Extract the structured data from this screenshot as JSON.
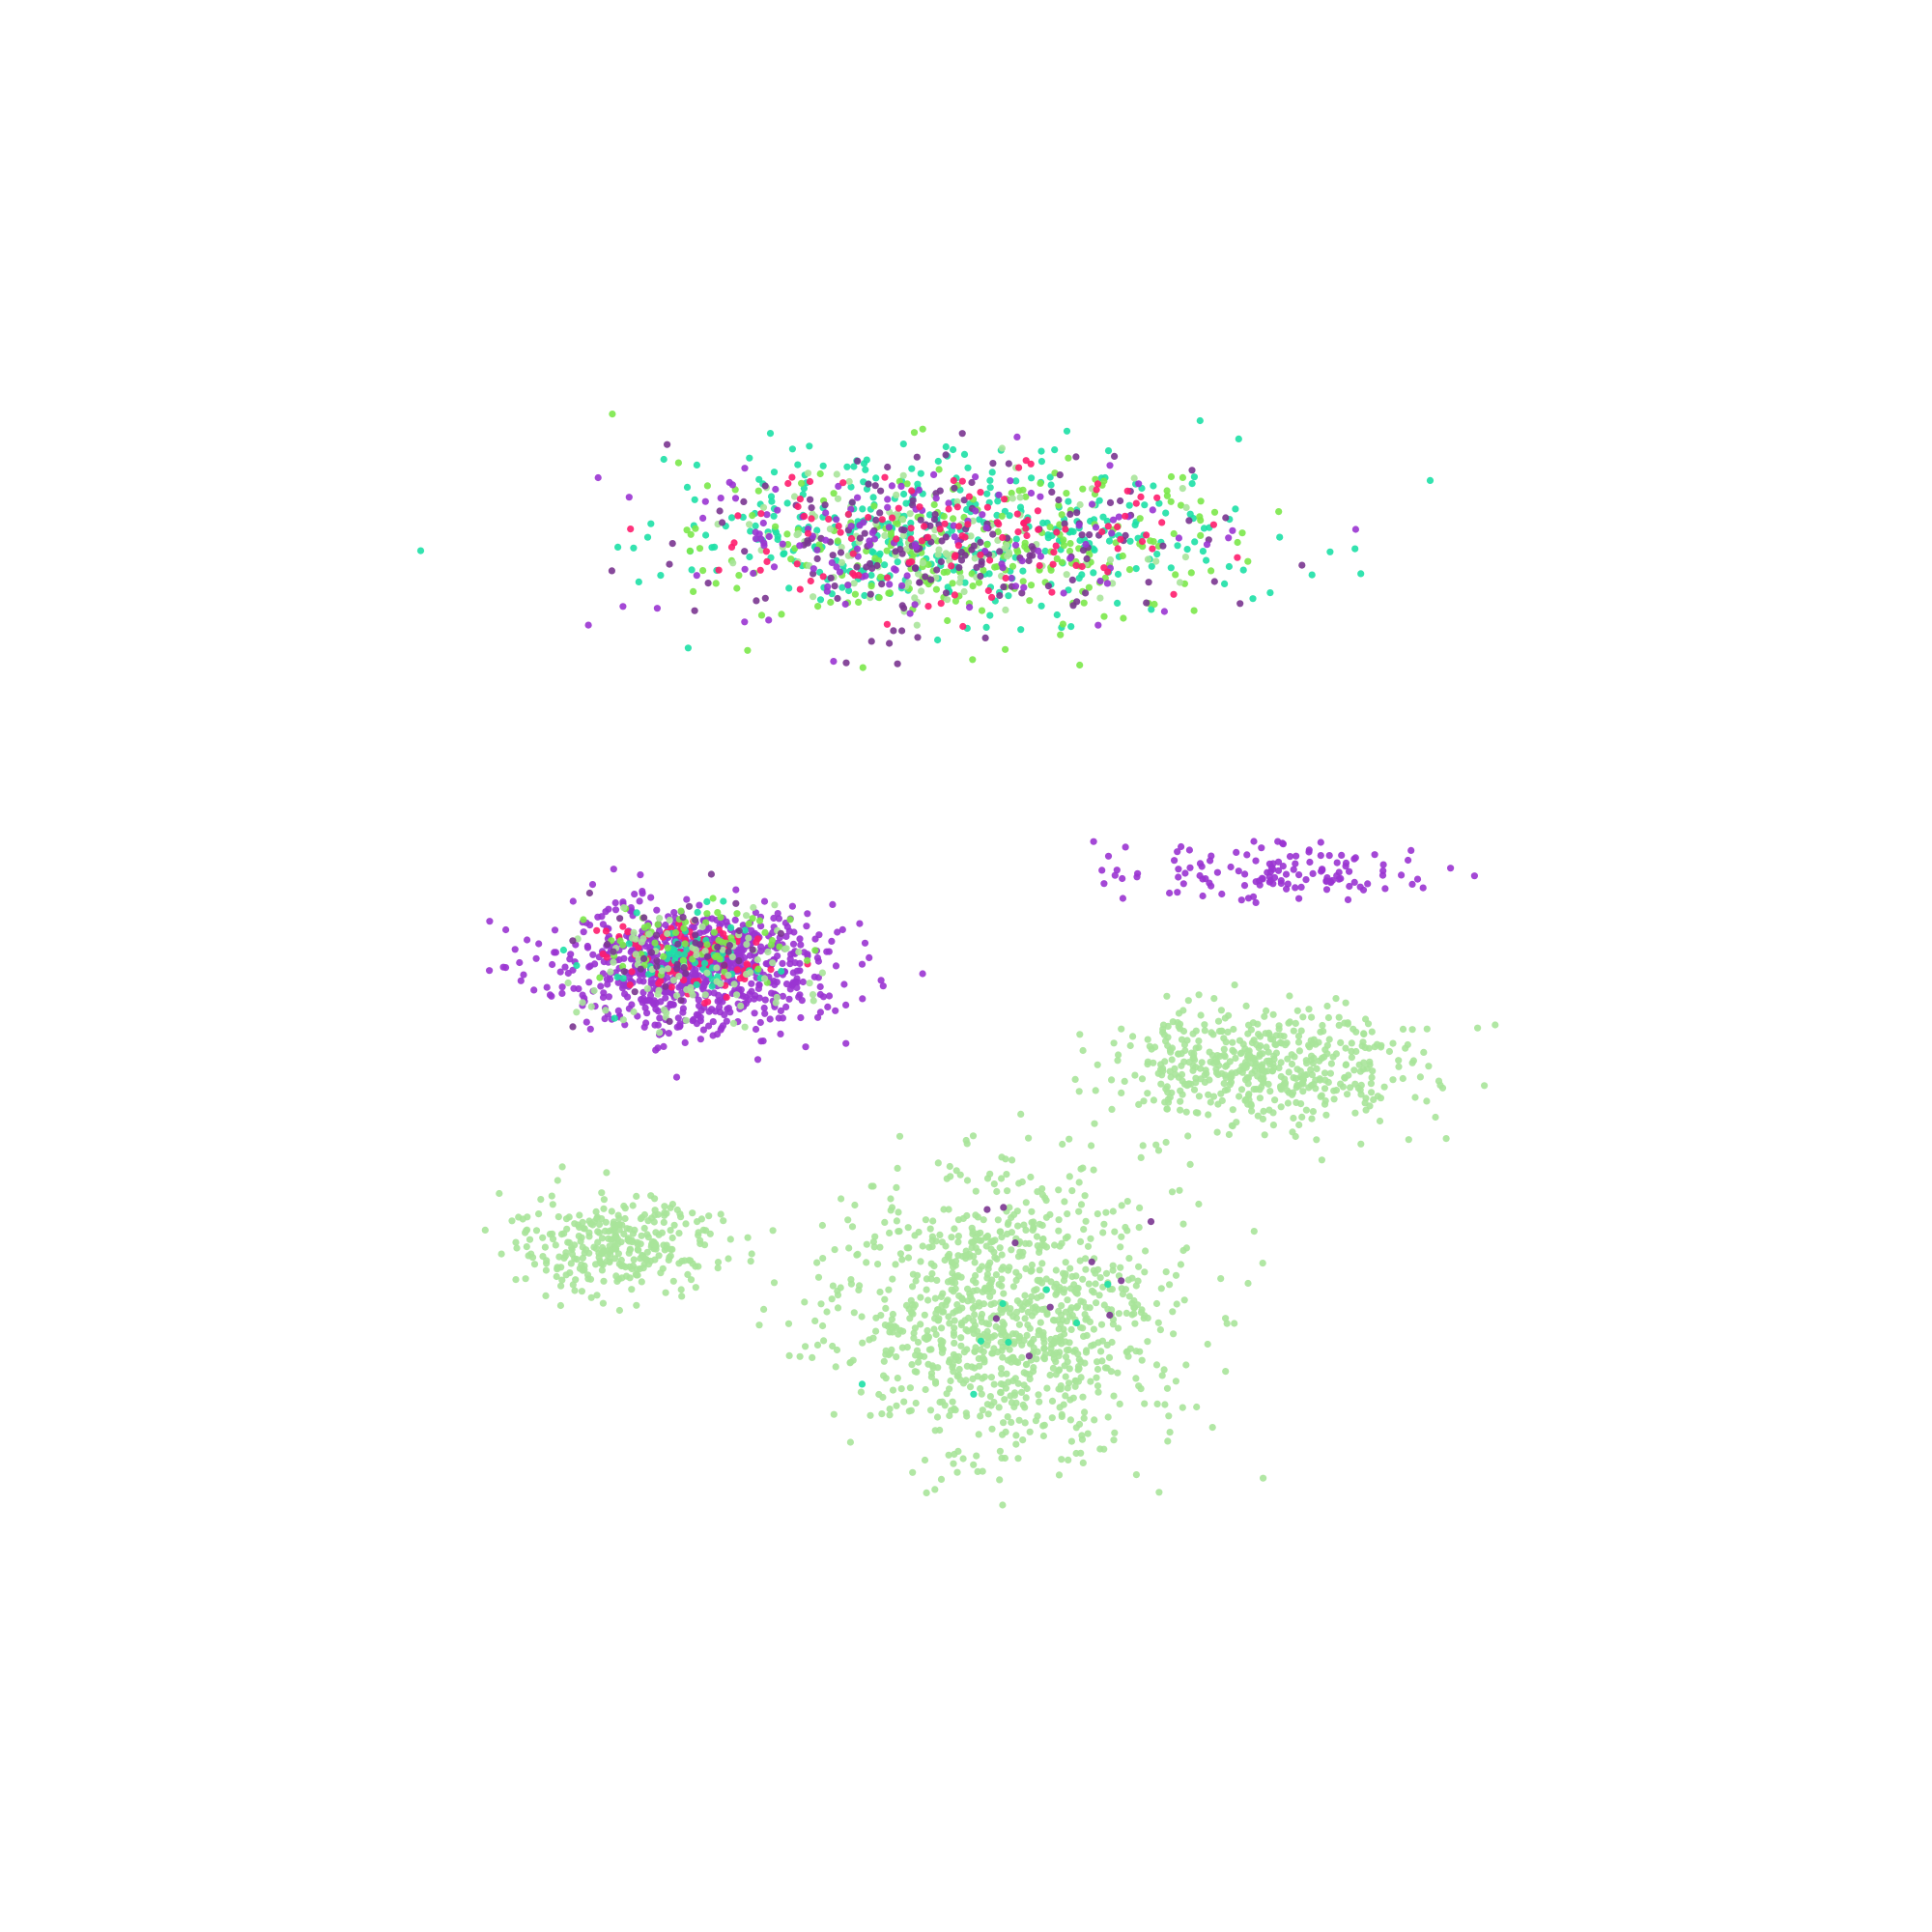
{
  "chart_data": {
    "type": "scatter",
    "title": "",
    "xlabel": "",
    "ylabel": "",
    "axes_visible": false,
    "grid": false,
    "legend": "none",
    "xlim": [
      -10,
      10
    ],
    "ylim": [
      -10,
      10
    ],
    "marker_opacity": 0.9,
    "clusters": [
      {
        "color": "#1de0a6",
        "center": [
          -0.2,
          5.6
        ],
        "spread": [
          3.5,
          1.1
        ],
        "count": 380
      },
      {
        "color": "#7be84a",
        "center": [
          0.3,
          5.4
        ],
        "spread": [
          3.3,
          1.1
        ],
        "count": 240
      },
      {
        "color": "#a8e49a",
        "center": [
          -0.5,
          5.5
        ],
        "spread": [
          3.0,
          1.0
        ],
        "count": 120
      },
      {
        "color": "#7a3590",
        "center": [
          -0.3,
          5.5
        ],
        "spread": [
          3.2,
          1.1
        ],
        "count": 170
      },
      {
        "color": "#9a34d2",
        "center": [
          -0.5,
          5.5
        ],
        "spread": [
          3.3,
          1.1
        ],
        "count": 130
      },
      {
        "color": "#ff1d6e",
        "center": [
          -0.1,
          5.6
        ],
        "spread": [
          3.0,
          1.0
        ],
        "count": 120
      },
      {
        "color": "#9a34d2",
        "center": [
          -3.5,
          0.0
        ],
        "spread": [
          1.8,
          0.8
        ],
        "count": 820
      },
      {
        "color": "#ff1d6e",
        "center": [
          -3.6,
          0.1
        ],
        "spread": [
          1.1,
          0.5
        ],
        "count": 90
      },
      {
        "color": "#1de0a6",
        "center": [
          -3.6,
          0.1
        ],
        "spread": [
          1.2,
          0.5
        ],
        "count": 60
      },
      {
        "color": "#7be84a",
        "center": [
          -3.4,
          0.3
        ],
        "spread": [
          1.3,
          0.5
        ],
        "count": 60
      },
      {
        "color": "#a8e49a",
        "center": [
          -3.5,
          0.0
        ],
        "spread": [
          1.8,
          0.8
        ],
        "count": 90
      },
      {
        "color": "#7a3590",
        "center": [
          -3.8,
          0.1
        ],
        "spread": [
          1.6,
          0.7
        ],
        "count": 40
      },
      {
        "color": "#9a34d2",
        "center": [
          4.2,
          1.2
        ],
        "spread": [
          1.9,
          0.4
        ],
        "count": 130
      },
      {
        "color": "#a8e49a",
        "center": [
          3.8,
          -1.3
        ],
        "spread": [
          2.0,
          0.8
        ],
        "count": 520
      },
      {
        "color": "#a8e49a",
        "center": [
          -4.5,
          -3.6
        ],
        "spread": [
          1.4,
          0.6
        ],
        "count": 320
      },
      {
        "color": "#a8e49a",
        "center": [
          0.5,
          -4.5
        ],
        "spread": [
          2.2,
          1.8
        ],
        "count": 1050
      },
      {
        "color": "#7a3590",
        "center": [
          0.8,
          -4.4
        ],
        "spread": [
          2.0,
          1.6
        ],
        "count": 10
      },
      {
        "color": "#1de0a6",
        "center": [
          0.5,
          -4.6
        ],
        "spread": [
          1.5,
          1.2
        ],
        "count": 8
      }
    ]
  }
}
